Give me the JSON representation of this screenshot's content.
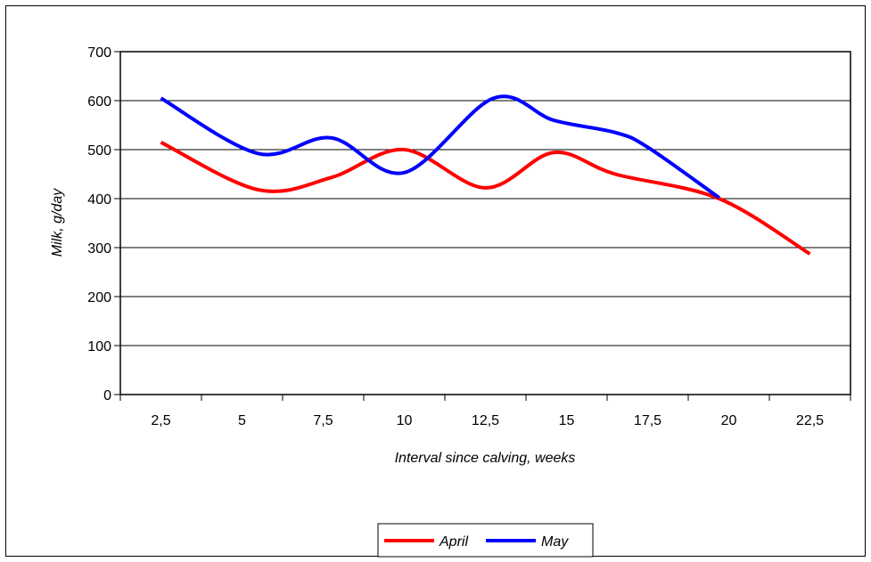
{
  "chart_data": {
    "type": "line",
    "xlabel": "Interval since calving, weeks",
    "ylabel": "Milk, g/day",
    "categories": [
      "2,5",
      "5",
      "7,5",
      "10",
      "12,5",
      "15",
      "17,5",
      "20",
      "22,5"
    ],
    "ylim": [
      0,
      700
    ],
    "yticks": [
      0,
      100,
      200,
      300,
      400,
      500,
      600,
      700
    ],
    "grid": "horizontal",
    "legend_position": "bottom",
    "series": [
      {
        "name": "April",
        "color": "#ff0000",
        "points": [
          [
            2.5,
            515
          ],
          [
            5.5,
            418
          ],
          [
            7.75,
            443
          ],
          [
            10.0,
            500
          ],
          [
            12.5,
            422
          ],
          [
            14.6,
            494
          ],
          [
            16.5,
            450
          ],
          [
            19.7,
            400
          ],
          [
            22.5,
            287
          ]
        ]
      },
      {
        "name": "May",
        "color": "#0000ff",
        "points": [
          [
            2.5,
            605
          ],
          [
            5.5,
            492
          ],
          [
            7.75,
            524
          ],
          [
            10.0,
            453
          ],
          [
            12.75,
            605
          ],
          [
            14.6,
            560
          ],
          [
            16.5,
            535
          ],
          [
            17.5,
            505
          ],
          [
            19.7,
            402
          ]
        ]
      }
    ]
  }
}
